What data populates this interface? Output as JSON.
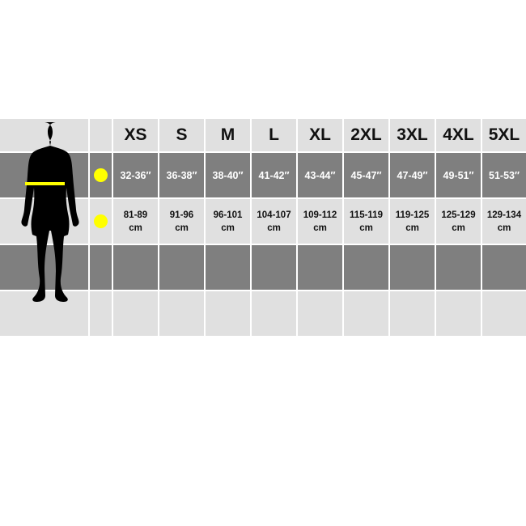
{
  "sizes": [
    "XS",
    "S",
    "M",
    "L",
    "XL",
    "2XL",
    "3XL",
    "4XL",
    "5XL"
  ],
  "inches": [
    "32-36″",
    "36-38″",
    "38-40″",
    "41-42″",
    "43-44″",
    "45-47″",
    "47-49″",
    "49-51″",
    "51-53″"
  ],
  "cm_ranges": [
    "81-89",
    "91-96",
    "96-101",
    "104-107",
    "109-112",
    "115-119",
    "119-125",
    "125-129",
    "129-134"
  ],
  "cm_unit": "cm",
  "colors": {
    "light": "#e0e0e0",
    "dark": "#7f7f7f",
    "marker": "#ffff00",
    "silhouette": "#000000"
  },
  "icons": {
    "figure": "male-silhouette-icon",
    "marker": "yellow-dot-icon"
  }
}
